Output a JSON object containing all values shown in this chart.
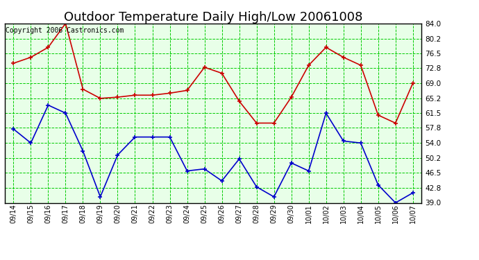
{
  "title": "Outdoor Temperature Daily High/Low 20061008",
  "copyright": "Copyright 2006 Castronics.com",
  "dates": [
    "09/14",
    "09/15",
    "09/16",
    "09/17",
    "09/18",
    "09/19",
    "09/20",
    "09/21",
    "09/22",
    "09/23",
    "09/24",
    "09/25",
    "09/26",
    "09/27",
    "09/28",
    "09/29",
    "09/30",
    "10/01",
    "10/02",
    "10/03",
    "10/04",
    "10/05",
    "10/06",
    "10/07"
  ],
  "high": [
    74.0,
    75.5,
    78.0,
    84.0,
    67.5,
    65.2,
    65.5,
    66.0,
    66.0,
    66.5,
    67.2,
    73.0,
    71.5,
    64.5,
    59.0,
    59.0,
    65.5,
    73.5,
    78.0,
    75.5,
    73.5,
    61.0,
    59.0,
    69.0
  ],
  "low": [
    57.5,
    54.0,
    63.5,
    61.5,
    52.0,
    40.5,
    51.0,
    55.5,
    55.5,
    55.5,
    47.0,
    47.5,
    44.5,
    50.0,
    43.0,
    40.5,
    49.0,
    47.0,
    61.5,
    54.5,
    54.0,
    43.5,
    39.0,
    41.5
  ],
  "high_color": "#cc0000",
  "low_color": "#0000cc",
  "bg_color": "#e8ffe8",
  "grid_color": "#00cc00",
  "plot_bg": "#ffffff",
  "ylim": [
    39.0,
    84.0
  ],
  "yticks": [
    39.0,
    42.8,
    46.5,
    50.2,
    54.0,
    57.8,
    61.5,
    65.2,
    69.0,
    72.8,
    76.5,
    80.2,
    84.0
  ],
  "title_fontsize": 13,
  "copyright_fontsize": 7,
  "fig_width": 6.9,
  "fig_height": 3.75,
  "dpi": 100
}
